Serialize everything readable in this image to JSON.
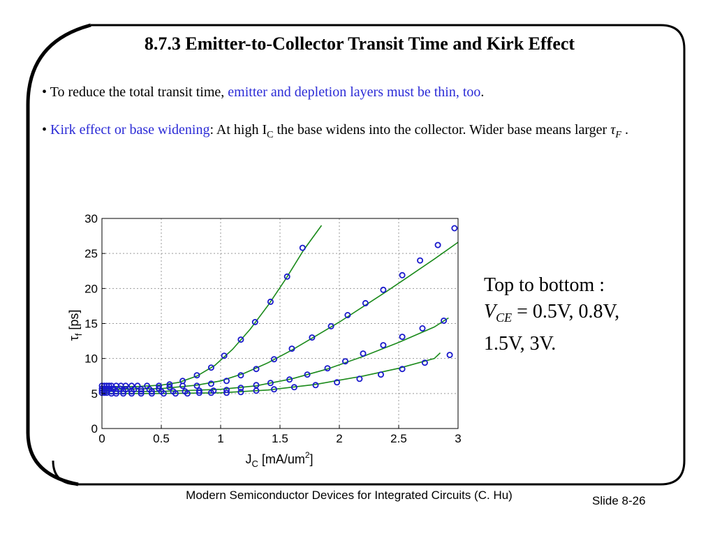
{
  "slide": {
    "title": "8.7.3  Emitter-to-Collector Transit Time and Kirk Effect",
    "bullet1": {
      "prefix": "• To reduce the total transit time, ",
      "highlight": "emitter and depletion layers must be thin, too",
      "suffix": "."
    },
    "bullet2": {
      "prefix": "• ",
      "highlight": "Kirk effect or base widening",
      "text_before_sub": ": At high I",
      "subscript": "C",
      "text_after_sub": " the base widens into the collector. Wider base means larger ",
      "symbol": "τ",
      "symbol_sub": "F",
      "suffix": " ."
    },
    "caption": {
      "line1": "Top to bottom :",
      "var": "V",
      "var_sub": "CE",
      "line2_rest": " = 0.5V, 0.8V,",
      "line3": "1.5V, 3V."
    },
    "footer": "Modern Semiconductor Devices for Integrated Circuits (C. Hu)",
    "slide_number": "Slide 8-26",
    "colors": {
      "highlight_text": "#2b2bd6",
      "fit_line": "#1a8a1a",
      "marker": "#1a1acc"
    }
  },
  "chart_data": {
    "type": "scatter",
    "xlabel": "J",
    "xlabel_sub": "C",
    "xlabel_unit": " [mA/um",
    "xlabel_sup": "2",
    "xlabel_close": "]",
    "ylabel": "τ",
    "ylabel_sub": "f",
    "ylabel_unit": " [ps]",
    "xlim": [
      0,
      3
    ],
    "ylim": [
      0,
      30
    ],
    "xticks": [
      "0",
      "0.5",
      "1",
      "1.5",
      "2",
      "2.5",
      "3"
    ],
    "yticks": [
      "0",
      "5",
      "10",
      "15",
      "20",
      "25",
      "30"
    ],
    "grid": true,
    "series": [
      {
        "points": [
          [
            0.0,
            6.1
          ],
          [
            0.02,
            6.1
          ],
          [
            0.04,
            6.1
          ],
          [
            0.06,
            6.1
          ],
          [
            0.08,
            6.1
          ],
          [
            0.12,
            6.1
          ],
          [
            0.16,
            6.1
          ],
          [
            0.2,
            6.1
          ],
          [
            0.25,
            6.1
          ],
          [
            0.3,
            6.1
          ],
          [
            0.38,
            6.1
          ],
          [
            0.48,
            6.1
          ],
          [
            0.57,
            6.3
          ],
          [
            0.68,
            6.8
          ],
          [
            0.8,
            7.6
          ],
          [
            0.92,
            8.7
          ],
          [
            1.03,
            10.4
          ],
          [
            1.17,
            12.7
          ],
          [
            1.29,
            15.2
          ],
          [
            1.42,
            18.1
          ],
          [
            1.56,
            21.7
          ],
          [
            1.69,
            25.8
          ]
        ],
        "fit": [
          [
            0,
            6.0
          ],
          [
            0.3,
            6.0
          ],
          [
            0.5,
            6.2
          ],
          [
            0.65,
            6.6
          ],
          [
            0.8,
            7.5
          ],
          [
            0.95,
            9.0
          ],
          [
            1.1,
            11.3
          ],
          [
            1.25,
            14.2
          ],
          [
            1.4,
            17.6
          ],
          [
            1.55,
            21.4
          ],
          [
            1.7,
            25.5
          ],
          [
            1.85,
            29.0
          ]
        ]
      },
      {
        "points": [
          [
            0.0,
            5.7
          ],
          [
            0.02,
            5.7
          ],
          [
            0.04,
            5.7
          ],
          [
            0.06,
            5.7
          ],
          [
            0.1,
            5.7
          ],
          [
            0.15,
            5.7
          ],
          [
            0.2,
            5.6
          ],
          [
            0.27,
            5.6
          ],
          [
            0.33,
            5.6
          ],
          [
            0.4,
            5.6
          ],
          [
            0.48,
            5.7
          ],
          [
            0.57,
            5.9
          ],
          [
            0.68,
            6.1
          ],
          [
            0.8,
            6.1
          ],
          [
            0.92,
            6.4
          ],
          [
            1.05,
            6.8
          ],
          [
            1.17,
            7.6
          ],
          [
            1.3,
            8.5
          ],
          [
            1.45,
            9.9
          ],
          [
            1.6,
            11.4
          ],
          [
            1.77,
            13.0
          ],
          [
            1.93,
            14.6
          ],
          [
            2.07,
            16.2
          ],
          [
            2.22,
            17.9
          ],
          [
            2.37,
            19.8
          ],
          [
            2.53,
            21.9
          ],
          [
            2.68,
            24.0
          ],
          [
            2.83,
            26.2
          ],
          [
            2.97,
            28.6
          ]
        ],
        "fit": [
          [
            0,
            5.6
          ],
          [
            0.5,
            5.7
          ],
          [
            0.8,
            6.2
          ],
          [
            1.0,
            6.8
          ],
          [
            1.2,
            7.9
          ],
          [
            1.4,
            9.4
          ],
          [
            1.6,
            11.2
          ],
          [
            1.8,
            13.2
          ],
          [
            2.0,
            15.2
          ],
          [
            2.2,
            17.4
          ],
          [
            2.4,
            19.6
          ],
          [
            2.6,
            21.9
          ],
          [
            2.8,
            24.2
          ],
          [
            3.0,
            26.6
          ]
        ]
      },
      {
        "points": [
          [
            0.0,
            5.4
          ],
          [
            0.02,
            5.4
          ],
          [
            0.04,
            5.4
          ],
          [
            0.08,
            5.3
          ],
          [
            0.12,
            5.3
          ],
          [
            0.18,
            5.3
          ],
          [
            0.25,
            5.3
          ],
          [
            0.33,
            5.3
          ],
          [
            0.42,
            5.3
          ],
          [
            0.5,
            5.3
          ],
          [
            0.6,
            5.3
          ],
          [
            0.7,
            5.3
          ],
          [
            0.82,
            5.4
          ],
          [
            0.94,
            5.4
          ],
          [
            1.05,
            5.5
          ],
          [
            1.17,
            5.8
          ],
          [
            1.3,
            6.2
          ],
          [
            1.42,
            6.5
          ],
          [
            1.58,
            7.0
          ],
          [
            1.73,
            7.7
          ],
          [
            1.9,
            8.6
          ],
          [
            2.05,
            9.6
          ],
          [
            2.2,
            10.7
          ],
          [
            2.37,
            11.9
          ],
          [
            2.53,
            13.1
          ],
          [
            2.7,
            14.3
          ],
          [
            2.88,
            15.4
          ]
        ],
        "fit": [
          [
            0,
            5.3
          ],
          [
            0.5,
            5.3
          ],
          [
            1.0,
            5.6
          ],
          [
            1.3,
            6.1
          ],
          [
            1.6,
            7.1
          ],
          [
            1.9,
            8.5
          ],
          [
            2.2,
            10.3
          ],
          [
            2.5,
            12.3
          ],
          [
            2.8,
            14.5
          ],
          [
            2.92,
            15.8
          ]
        ]
      },
      {
        "points": [
          [
            0.0,
            5.1
          ],
          [
            0.02,
            5.1
          ],
          [
            0.04,
            5.1
          ],
          [
            0.08,
            5.0
          ],
          [
            0.12,
            5.0
          ],
          [
            0.18,
            5.0
          ],
          [
            0.25,
            5.0
          ],
          [
            0.33,
            5.0
          ],
          [
            0.42,
            5.0
          ],
          [
            0.52,
            5.0
          ],
          [
            0.62,
            5.0
          ],
          [
            0.72,
            5.0
          ],
          [
            0.82,
            5.1
          ],
          [
            0.92,
            5.1
          ],
          [
            1.05,
            5.1
          ],
          [
            1.17,
            5.2
          ],
          [
            1.3,
            5.4
          ],
          [
            1.45,
            5.6
          ],
          [
            1.62,
            5.9
          ],
          [
            1.8,
            6.2
          ],
          [
            1.98,
            6.6
          ],
          [
            2.17,
            7.1
          ],
          [
            2.35,
            7.7
          ],
          [
            2.53,
            8.5
          ],
          [
            2.72,
            9.4
          ],
          [
            2.93,
            10.5
          ]
        ],
        "fit": [
          [
            0,
            5.0
          ],
          [
            0.5,
            5.0
          ],
          [
            1.0,
            5.1
          ],
          [
            1.4,
            5.5
          ],
          [
            1.8,
            6.3
          ],
          [
            2.2,
            7.5
          ],
          [
            2.5,
            8.6
          ],
          [
            2.8,
            10.0
          ],
          [
            2.85,
            10.8
          ]
        ]
      }
    ]
  }
}
